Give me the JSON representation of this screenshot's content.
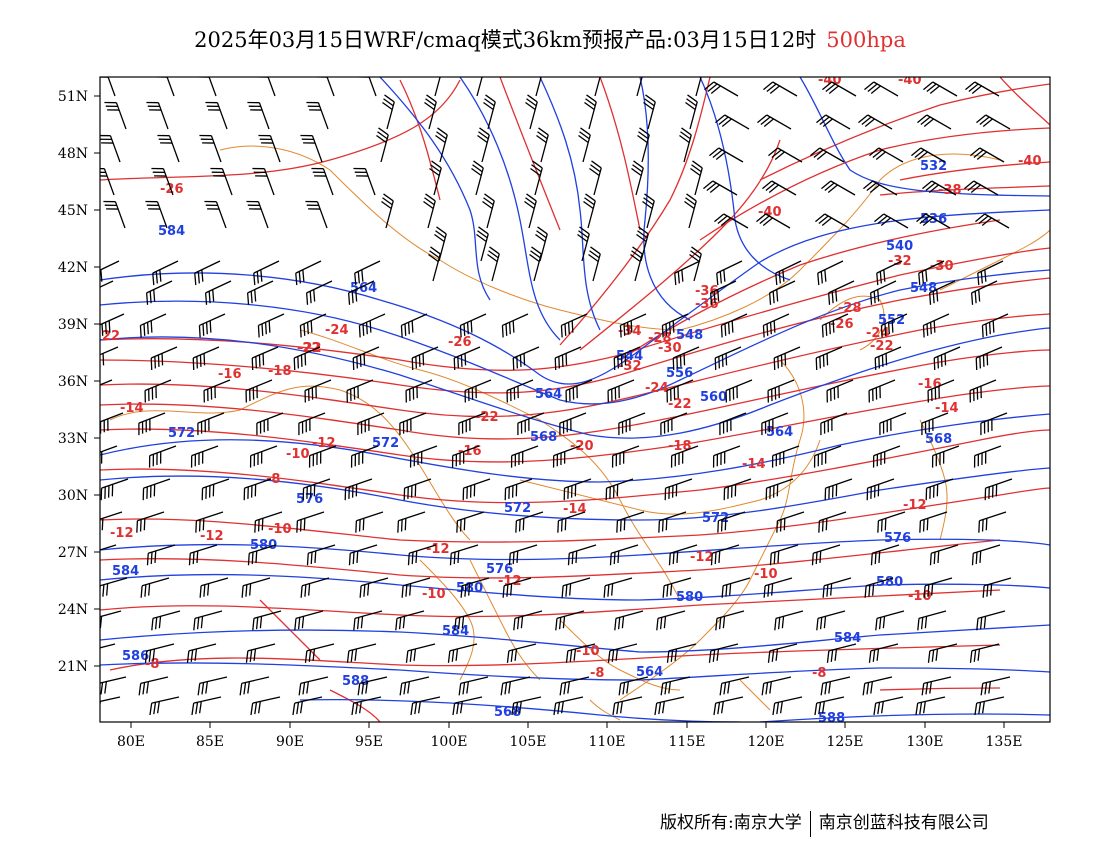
{
  "title": {
    "main": "2025年03月15日WRF/cmaq模式36km预报产品:03月15日12时",
    "level": "500hpa"
  },
  "footer": {
    "left": "版权所有:南京大学",
    "right": "南京创蓝科技有限公司"
  },
  "axes": {
    "lon_ticks": [
      "80E",
      "85E",
      "90E",
      "95E",
      "100E",
      "105E",
      "110E",
      "115E",
      "120E",
      "125E",
      "130E",
      "135E"
    ],
    "lat_ticks": [
      "51N",
      "48N",
      "45N",
      "42N",
      "39N",
      "36N",
      "33N",
      "30N",
      "27N",
      "24N",
      "21N"
    ]
  },
  "colors": {
    "temperature": "#e03030",
    "height": "#2040e0",
    "boundary": "#e08a30",
    "wind": "#000000"
  },
  "temperature_labels": [
    "-40",
    "-40",
    "-40",
    "-38",
    "-40",
    "-36",
    "-36",
    "-34",
    "-32",
    "-30",
    "-28",
    "-26",
    "-24",
    "-24",
    "-22",
    "-22",
    "-22",
    "-22",
    "-20",
    "-26",
    "-26",
    "-24",
    "-22",
    "-18",
    "-18",
    "-16",
    "-16",
    "-16",
    "-14",
    "-14",
    "-14",
    "-14",
    "-12",
    "-12",
    "-12",
    "-12",
    "-12",
    "-12",
    "-12",
    "-10",
    "-10",
    "-10",
    "-10",
    "-10",
    "-10",
    "-8",
    "-8",
    "-8",
    "-8",
    "22",
    "-28",
    "-30",
    "-32"
  ],
  "height_labels": [
    "584",
    "584",
    "564",
    "564",
    "564",
    "572",
    "572",
    "568",
    "568",
    "572",
    "572",
    "576",
    "576",
    "576",
    "580",
    "580",
    "580",
    "580",
    "584",
    "584",
    "586",
    "588",
    "588",
    "536",
    "540",
    "548",
    "552",
    "556",
    "560",
    "564",
    "568",
    "532",
    "548",
    "544"
  ],
  "icons": [
    "wind-barb-icon"
  ]
}
